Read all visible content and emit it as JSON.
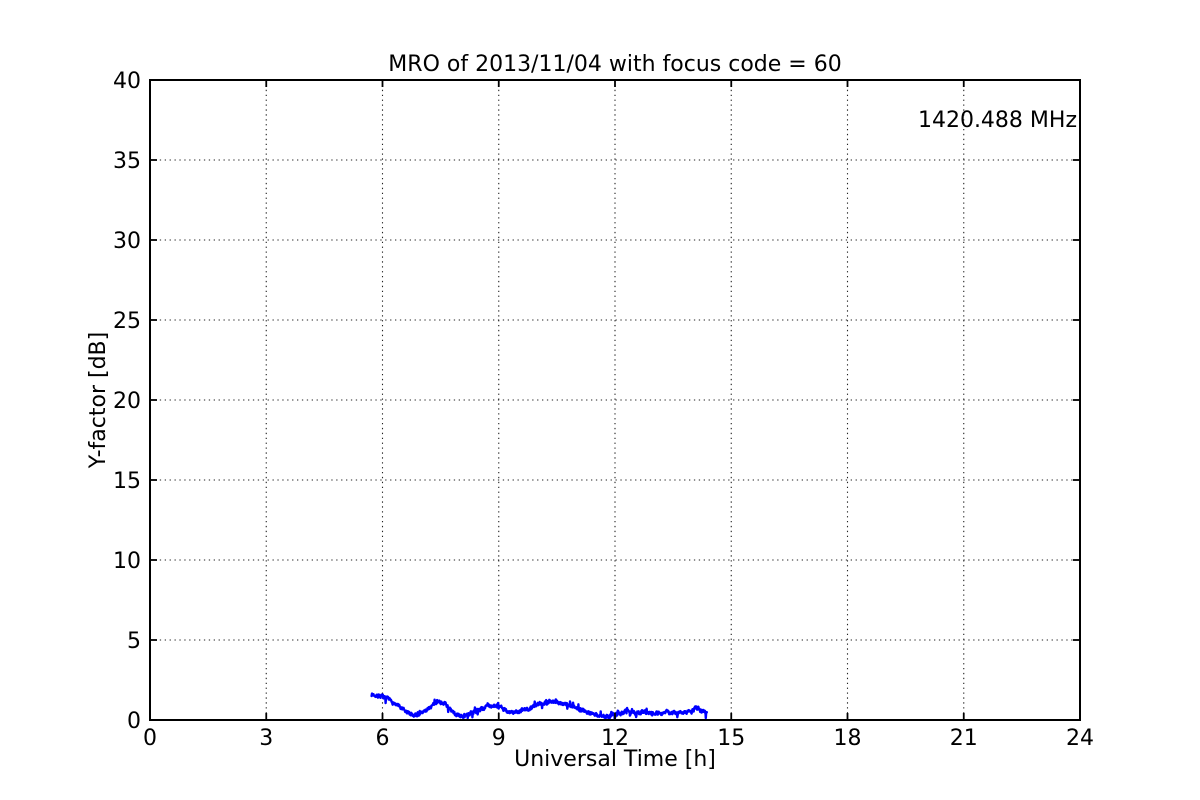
{
  "figure": {
    "background": "#ffffff",
    "frame_color": "#000000"
  },
  "chart_data": {
    "type": "line",
    "title": "MRO of 2013/11/04 with focus code = 60",
    "xlabel": "Universal Time [h]",
    "ylabel": "Y-factor [dB]",
    "xlim": [
      0,
      24
    ],
    "ylim": [
      0,
      40
    ],
    "xticks": [
      0,
      3,
      6,
      9,
      12,
      15,
      18,
      21,
      24
    ],
    "yticks": [
      0,
      5,
      10,
      15,
      20,
      25,
      30,
      35,
      40
    ],
    "grid": true,
    "grid_style": "dotted",
    "legend_position": "none",
    "annotation": {
      "text": "1420.488 MHz",
      "color": "#0000ff",
      "position": "top-right"
    },
    "series": [
      {
        "name": "1420.488 MHz",
        "color": "#0000ff",
        "x": [
          5.72,
          5.85,
          6.0,
          6.15,
          6.3,
          6.45,
          6.6,
          6.75,
          6.9,
          7.05,
          7.2,
          7.35,
          7.45,
          7.55,
          7.65,
          7.75,
          7.9,
          8.05,
          8.2,
          8.35,
          8.55,
          8.75,
          8.9,
          9.05,
          9.2,
          9.35,
          9.5,
          9.65,
          9.85,
          10.05,
          10.25,
          10.4,
          10.55,
          10.75,
          10.95,
          11.15,
          11.35,
          11.55,
          11.7,
          11.85,
          12.0,
          12.15,
          12.35,
          12.55,
          12.75,
          12.95,
          13.15,
          13.35,
          13.55,
          13.75,
          13.9,
          14.0,
          14.1,
          14.2,
          14.3,
          14.37
        ],
        "y": [
          1.6,
          1.55,
          1.45,
          1.28,
          1.05,
          0.78,
          0.5,
          0.36,
          0.34,
          0.48,
          0.75,
          1.02,
          1.15,
          1.1,
          0.95,
          0.6,
          0.32,
          0.24,
          0.32,
          0.48,
          0.7,
          0.88,
          0.93,
          0.78,
          0.58,
          0.46,
          0.5,
          0.62,
          0.8,
          1.0,
          1.15,
          1.17,
          1.08,
          0.95,
          0.8,
          0.62,
          0.45,
          0.3,
          0.2,
          0.22,
          0.35,
          0.45,
          0.5,
          0.46,
          0.52,
          0.47,
          0.42,
          0.5,
          0.42,
          0.46,
          0.5,
          0.55,
          0.78,
          0.62,
          0.52,
          0.5
        ],
        "noise_amplitude": 0.1,
        "noise_spike_chance": 0.06,
        "noise_spike_amplitude": 0.28,
        "noise_seed": 7,
        "sample_step_h": 0.008
      }
    ]
  }
}
